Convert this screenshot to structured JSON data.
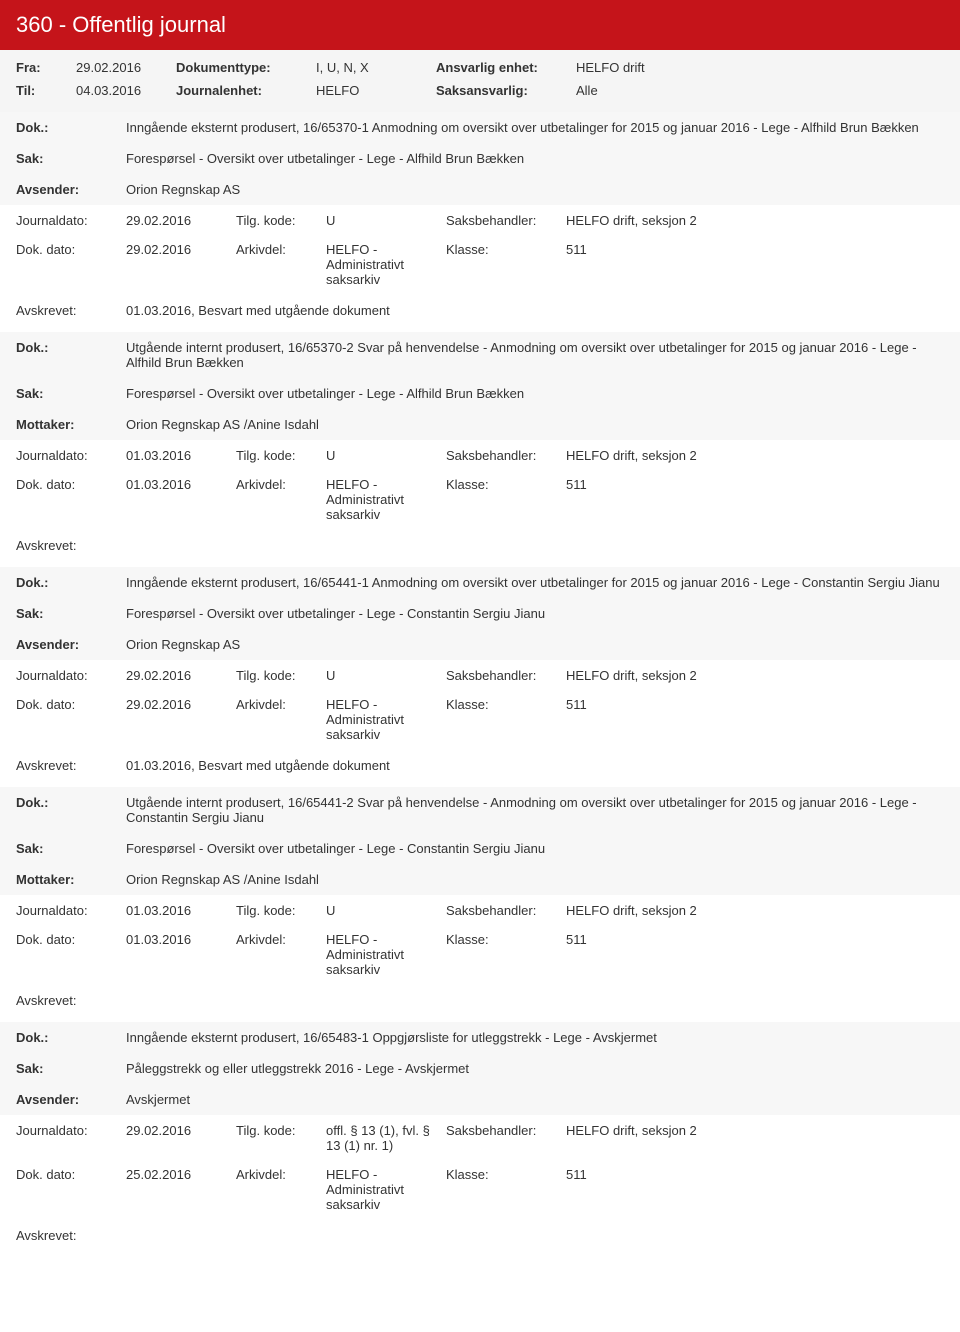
{
  "header": {
    "title": "360 - Offentlig journal"
  },
  "filter": {
    "fra_label": "Fra:",
    "fra_value": "29.02.2016",
    "til_label": "Til:",
    "til_value": "04.03.2016",
    "doktype_label": "Dokumenttype:",
    "doktype_value": "I, U, N, X",
    "journalenhet_label": "Journalenhet:",
    "journalenhet_value": "HELFO",
    "ansvarlig_label": "Ansvarlig enhet:",
    "ansvarlig_value": "HELFO drift",
    "saksansvarlig_label": "Saksansvarlig:",
    "saksansvarlig_value": "Alle"
  },
  "labels": {
    "dok": "Dok.:",
    "sak": "Sak:",
    "avsender": "Avsender:",
    "mottaker": "Mottaker:",
    "journaldato": "Journaldato:",
    "dokdato": "Dok. dato:",
    "tilgkode": "Tilg. kode:",
    "arkivdel": "Arkivdel:",
    "saksbehandler": "Saksbehandler:",
    "klasse": "Klasse:",
    "avskrevet": "Avskrevet:"
  },
  "entries": [
    {
      "dok": "Inngående eksternt produsert, 16/65370-1 Anmodning om oversikt over utbetalinger for 2015 og januar 2016 - Lege - Alfhild Brun Bækken",
      "sak": "Forespørsel - Oversikt over utbetalinger - Lege - Alfhild Brun Bækken",
      "party_label": "Avsender:",
      "party": "Orion Regnskap AS",
      "journaldato": "29.02.2016",
      "dokdato": "29.02.2016",
      "tilgkode": "U",
      "arkivdel": "HELFO - Administrativt saksarkiv",
      "saksbehandler": "HELFO drift, seksjon 2",
      "klasse": "511",
      "avskrevet": "01.03.2016, Besvart med utgående dokument"
    },
    {
      "dok": "Utgående internt produsert, 16/65370-2 Svar på henvendelse - Anmodning om oversikt over utbetalinger for 2015 og januar 2016 - Lege - Alfhild Brun Bækken",
      "sak": "Forespørsel - Oversikt over utbetalinger - Lege - Alfhild Brun Bækken",
      "party_label": "Mottaker:",
      "party": "Orion Regnskap AS /Anine Isdahl",
      "journaldato": "01.03.2016",
      "dokdato": "01.03.2016",
      "tilgkode": "U",
      "arkivdel": "HELFO - Administrativt saksarkiv",
      "saksbehandler": "HELFO drift, seksjon 2",
      "klasse": "511",
      "avskrevet": ""
    },
    {
      "dok": "Inngående eksternt produsert, 16/65441-1 Anmodning om oversikt over utbetalinger for 2015 og januar 2016 - Lege - Constantin Sergiu Jianu",
      "sak": "Forespørsel - Oversikt over utbetalinger - Lege - Constantin Sergiu Jianu",
      "party_label": "Avsender:",
      "party": "Orion Regnskap AS",
      "journaldato": "29.02.2016",
      "dokdato": "29.02.2016",
      "tilgkode": "U",
      "arkivdel": "HELFO - Administrativt saksarkiv",
      "saksbehandler": "HELFO drift, seksjon 2",
      "klasse": "511",
      "avskrevet": "01.03.2016, Besvart med utgående dokument"
    },
    {
      "dok": "Utgående internt produsert, 16/65441-2 Svar på henvendelse - Anmodning om oversikt over utbetalinger for 2015 og januar 2016 - Lege - Constantin Sergiu Jianu",
      "sak": "Forespørsel - Oversikt over utbetalinger - Lege - Constantin Sergiu Jianu",
      "party_label": "Mottaker:",
      "party": "Orion Regnskap AS /Anine Isdahl",
      "journaldato": "01.03.2016",
      "dokdato": "01.03.2016",
      "tilgkode": "U",
      "arkivdel": "HELFO - Administrativt saksarkiv",
      "saksbehandler": "HELFO drift, seksjon 2",
      "klasse": "511",
      "avskrevet": ""
    },
    {
      "dok": "Inngående eksternt produsert, 16/65483-1 Oppgjørsliste for utleggstrekk - Lege - Avskjermet",
      "sak": "Påleggstrekk og eller utleggstrekk 2016 - Lege - Avskjermet",
      "party_label": "Avsender:",
      "party": "Avskjermet",
      "journaldato": "29.02.2016",
      "dokdato": "25.02.2016",
      "tilgkode": "offl. § 13 (1), fvl. § 13 (1) nr. 1)",
      "arkivdel": "HELFO - Administrativt saksarkiv",
      "saksbehandler": "HELFO drift, seksjon 2",
      "klasse": "511",
      "avskrevet": ""
    }
  ]
}
